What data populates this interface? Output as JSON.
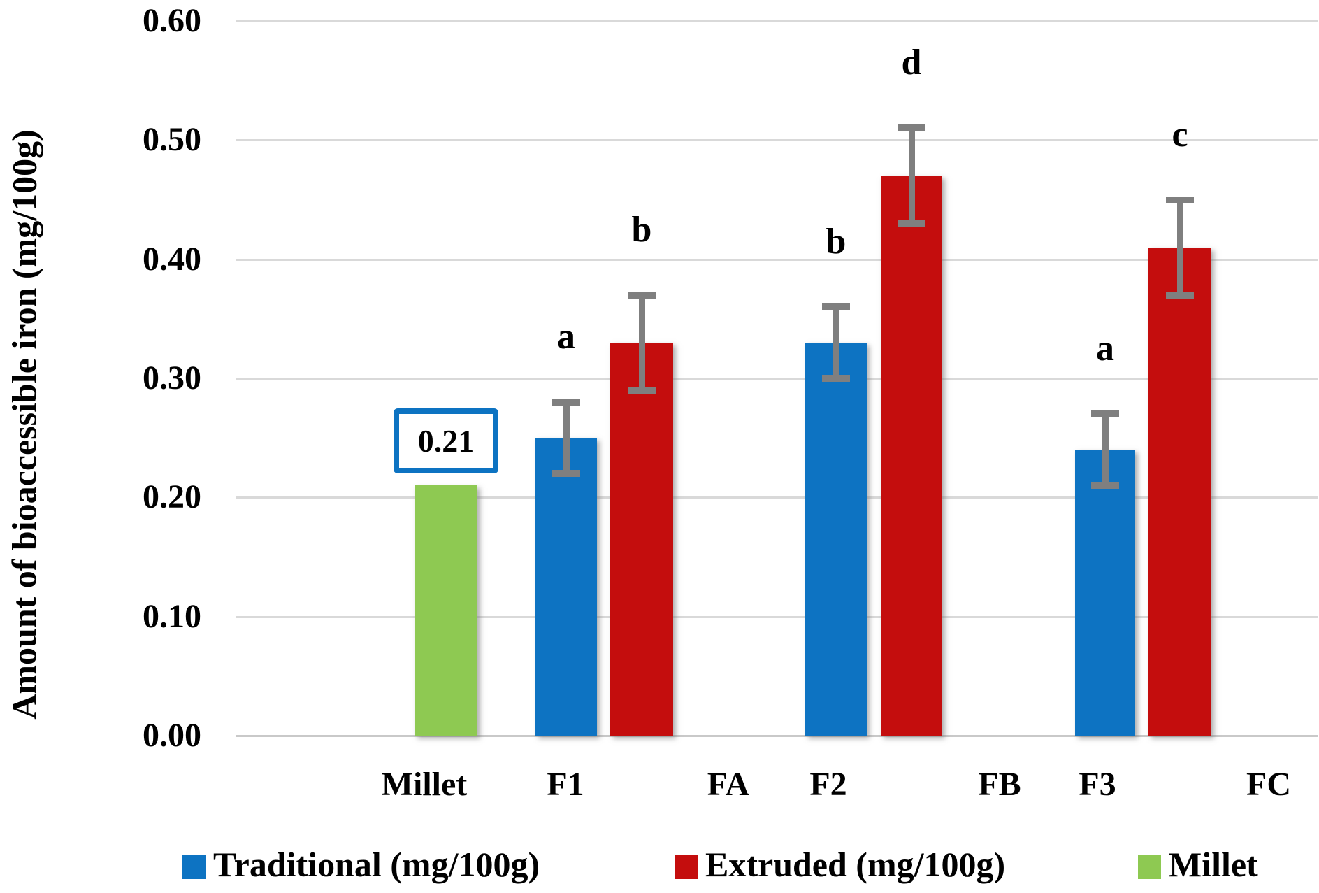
{
  "chart_data": {
    "type": "bar",
    "title": "",
    "xlabel": "",
    "ylabel": "Amount of bioaccessible iron (mg/100g)",
    "ylim": [
      0.0,
      0.6
    ],
    "ytick_step": 0.1,
    "ytick_labels": [
      "0.00",
      "0.10",
      "0.20",
      "0.30",
      "0.40",
      "0.50",
      "0.60"
    ],
    "grid": true,
    "legend_position": "bottom",
    "categories": [
      "Millet",
      "F1",
      "FA",
      "F2",
      "FB",
      "F3",
      "FC"
    ],
    "series": [
      {
        "key": "Traditional",
        "name": "Traditional (mg/100g)",
        "color": "#0d73c2"
      },
      {
        "key": "Extruded",
        "name": "Extruded (mg/100g)",
        "color": "#c40d0d"
      },
      {
        "key": "Millet",
        "name": "Millet",
        "color": "#8ec952"
      }
    ],
    "bars": [
      {
        "category": "Millet",
        "series": "Millet",
        "value": 0.21,
        "value_label": "0.21"
      },
      {
        "category": "F1",
        "series": "Traditional",
        "value": 0.25,
        "error": 0.03,
        "sig_letter": "a"
      },
      {
        "category": "F1",
        "series": "Extruded",
        "value": 0.33,
        "error": 0.04,
        "sig_letter": "b"
      },
      {
        "category": "F2",
        "series": "Traditional",
        "value": 0.33,
        "error": 0.03,
        "sig_letter": "b"
      },
      {
        "category": "F2",
        "series": "Extruded",
        "value": 0.47,
        "error": 0.04,
        "sig_letter": "d"
      },
      {
        "category": "F3",
        "series": "Traditional",
        "value": 0.24,
        "error": 0.03,
        "sig_letter": "a"
      },
      {
        "category": "F3",
        "series": "Extruded",
        "value": 0.41,
        "error": 0.04,
        "sig_letter": "c"
      }
    ],
    "colors": {
      "error_bar": "#7f7f7f",
      "gridline": "#d9d9d9",
      "baseline": "#c9c9c9",
      "annotation_border": "#0d73c2",
      "text": "#000000"
    }
  }
}
